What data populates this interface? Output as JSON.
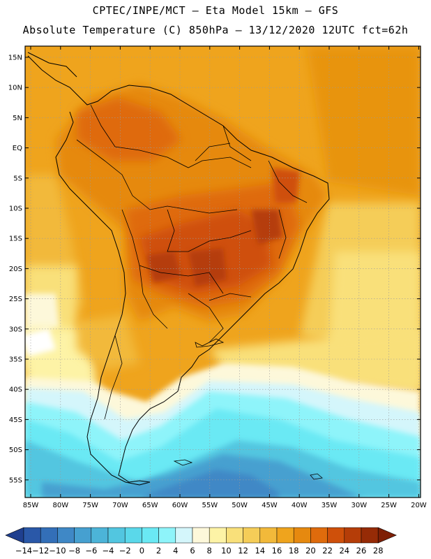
{
  "header": {
    "line1": "CPTEC/INPE/MCT –  Eta Model 15km – GFS",
    "line2": "Absolute Temperature (C) 850hPa – 13/12/2020 12UTC fct=62h"
  },
  "map": {
    "lat_labels": [
      "15N",
      "10N",
      "5N",
      "EQ",
      "5S",
      "10S",
      "15S",
      "20S",
      "25S",
      "30S",
      "35S",
      "40S",
      "45S",
      "50S",
      "55S"
    ],
    "lon_labels": [
      "85W",
      "80W",
      "75W",
      "70W",
      "65W",
      "60W",
      "55W",
      "50W",
      "45W",
      "40W",
      "35W",
      "30W",
      "25W",
      "20W"
    ]
  },
  "colorbar": {
    "labels": [
      "-14",
      "-12",
      "-10",
      "-8",
      "-6",
      "-4",
      "-2",
      "0",
      "2",
      "4",
      "6",
      "8",
      "10",
      "12",
      "14",
      "16",
      "18",
      "20",
      "22",
      "24",
      "26",
      "28"
    ],
    "colors": [
      "#1f3f8f",
      "#2a58a8",
      "#336fb8",
      "#3f88c6",
      "#46a0d0",
      "#4cb4d8",
      "#52c6e0",
      "#5ad8ea",
      "#6ae9f4",
      "#8ef4fa",
      "#d4f6fb",
      "#fdf8da",
      "#fdf3a6",
      "#f9e07a",
      "#f5cd58",
      "#f2b93a",
      "#efa41d",
      "#e6890f",
      "#df6b0c",
      "#cf500a",
      "#b53d08",
      "#962b06",
      "#7e1f05"
    ]
  }
}
